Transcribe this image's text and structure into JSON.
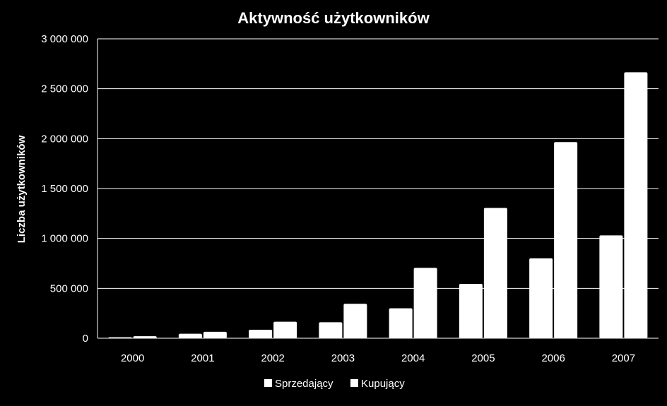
{
  "chart_data": {
    "type": "bar",
    "title": "Aktywność użytkowników",
    "xlabel": "",
    "ylabel": "Liczba użytkowników",
    "categories": [
      "2000",
      "2001",
      "2002",
      "2003",
      "2004",
      "2005",
      "2006",
      "2007"
    ],
    "series": [
      {
        "name": "Sprzedający",
        "color": "#ffffff",
        "values": [
          10000,
          45000,
          85000,
          160000,
          300000,
          545000,
          800000,
          1030000
        ]
      },
      {
        "name": "Kupujący",
        "color": "#ffffff",
        "values": [
          20000,
          65000,
          165000,
          345000,
          705000,
          1305000,
          1965000,
          2665000
        ]
      }
    ],
    "ylim": [
      0,
      3000000
    ],
    "yticks": [
      0,
      500000,
      1000000,
      1500000,
      2000000,
      2500000,
      3000000
    ],
    "ytick_labels": [
      "0",
      "500 000",
      "1 000 000",
      "1 500 000",
      "2 000 000",
      "2 500 000",
      "3 000 000"
    ],
    "grid": true,
    "legend_position": "bottom",
    "colors": {
      "background": "#000000",
      "grid": "#ffffff",
      "bars": "#ffffff",
      "text": "#ffffff"
    }
  }
}
